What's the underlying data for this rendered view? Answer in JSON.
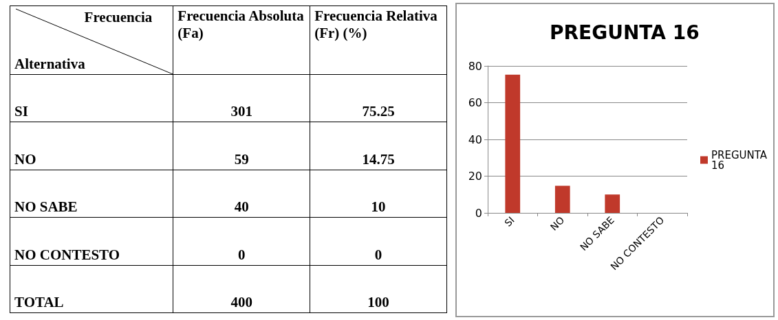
{
  "chart_data": [
    {
      "type": "other",
      "xlabel": "Alternativa",
      "ylabel": "Frecuencia",
      "categories": [
        "SI",
        "NO",
        "NO SABE",
        "NO CONTESTO",
        "TOTAL"
      ],
      "data_labels": true,
      "series": [
        {
          "name": "Frecuencia Absoluta (Fa)",
          "values": [
            301,
            59,
            40,
            0,
            400
          ]
        },
        {
          "name": "Frecuencia Relativa (Fr) (%)",
          "values": [
            75.25,
            14.75,
            10,
            0,
            100
          ]
        }
      ]
    },
    {
      "type": "bar",
      "title": "PREGUNTA 16",
      "categories": [
        "SI",
        "NO",
        "NO SABE",
        "NO CONTESTO"
      ],
      "series": [
        {
          "name": "PREGUNTA 16",
          "color": "#c0392b",
          "values": [
            75.25,
            14.75,
            10,
            0
          ]
        }
      ],
      "ylim": [
        0,
        80
      ],
      "yticks": [
        0,
        20,
        40,
        60,
        80
      ],
      "grid": "y",
      "legend": "right"
    }
  ]
}
